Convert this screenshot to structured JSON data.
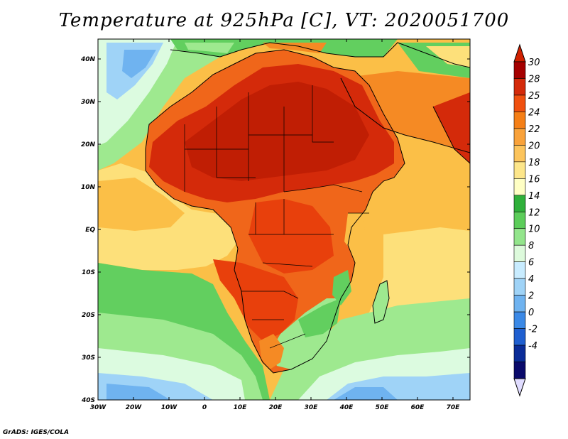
{
  "title": "Temperature at 925hPa [C], VT: 2020051700",
  "credit": "GrADS: IGES/COLA",
  "x_ticks": [
    "30W",
    "20W",
    "10W",
    "0",
    "10E",
    "20E",
    "30E",
    "40E",
    "50E",
    "60E",
    "70E"
  ],
  "y_ticks": [
    "40N",
    "30N",
    "20N",
    "10N",
    "EQ",
    "10S",
    "20S",
    "30S",
    "40S"
  ],
  "colorbar": {
    "labels": [
      "30",
      "28",
      "25",
      "24",
      "22",
      "20",
      "18",
      "16",
      "14",
      "12",
      "10",
      "8",
      "6",
      "4",
      "2",
      "0",
      "-2",
      "-4"
    ],
    "colors": [
      "#a50000",
      "#d42a0a",
      "#f0500f",
      "#f57f16",
      "#f9a23a",
      "#fcc45c",
      "#fde68a",
      "#ffffc4",
      "#2fb03a",
      "#5ccd5a",
      "#93e58c",
      "#ddfadc",
      "#c8ecff",
      "#9fd3f7",
      "#6fb3f0",
      "#3b89e6",
      "#1f5fd0",
      "#0a2c98",
      "#0a0a6b"
    ],
    "top_tip_color": "#d02000",
    "bottom_tip_color": "#e0dcff"
  },
  "map": {
    "ocean_colors": {
      "warm": "#fbbf47",
      "mid": "#fde07a",
      "cool_green": "#62cf5f",
      "light_green": "#9ee98f",
      "pale": "#dcfbe0",
      "blue": "#9fd3f7",
      "deep_blue": "#6fb3f0"
    },
    "land_colors": {
      "hot": "#d42a0a",
      "hotter": "#e8400c",
      "warm": "#f0661a",
      "orange": "#f58a24"
    }
  }
}
